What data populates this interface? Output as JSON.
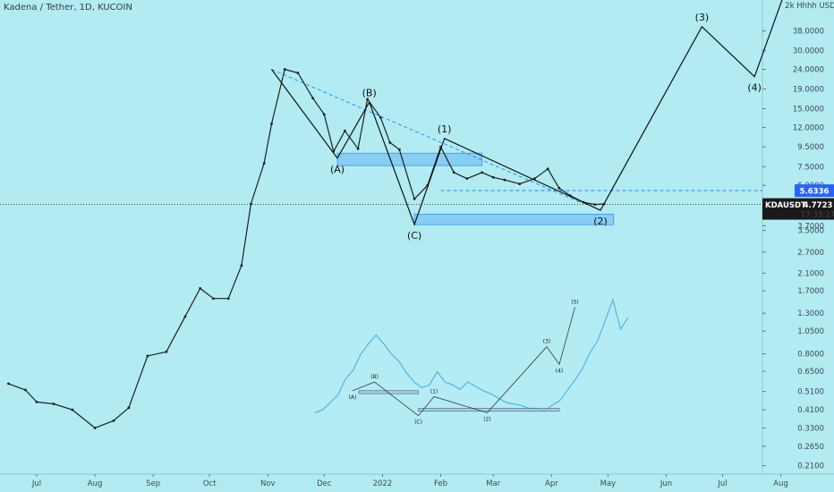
{
  "chart_data": {
    "type": "line",
    "title": "Kadena / Tether, 1D, KUCOIN",
    "y_scale": "log",
    "ylim": [
      0.19,
      55
    ],
    "y_ticks": [
      "38.0000",
      "30.0000",
      "24.0000",
      "19.0000",
      "15.0000",
      "12.0000",
      "9.5000",
      "7.5000",
      "6.0000",
      "4.7000",
      "3.7000",
      "3.5000",
      "2.7000",
      "2.1000",
      "1.7000",
      "1.3000",
      "1.0500",
      "0.8000",
      "0.6500",
      "0.5100",
      "0.4100",
      "0.3300",
      "0.2650",
      "0.2100"
    ],
    "y_tick_values": [
      38,
      30,
      24,
      19,
      15,
      12,
      9.5,
      7.5,
      6,
      4.7,
      3.7,
      3.5,
      2.7,
      2.1,
      1.7,
      1.3,
      1.05,
      0.8,
      0.65,
      0.51,
      0.41,
      0.33,
      0.265,
      0.21
    ],
    "y_tick_top": "2k Hhhh USDT",
    "x_ticks": [
      "Jul",
      "Aug",
      "Sep",
      "Oct",
      "Nov",
      "Dec",
      "2022",
      "Feb",
      "Mar",
      "Apr",
      "May",
      "Jun",
      "Jul",
      "Aug"
    ],
    "x_tick_days": [
      181,
      212,
      243,
      273,
      304,
      334,
      365,
      396,
      424,
      455,
      485,
      516,
      546,
      577
    ],
    "price_series": {
      "name": "KDAUSDT",
      "x": [
        166,
        175,
        181,
        190,
        200,
        212,
        222,
        230,
        240,
        250,
        260,
        268,
        275,
        283,
        290,
        295,
        302,
        306,
        313,
        320,
        328,
        334,
        339,
        345,
        352,
        357,
        364,
        369,
        374,
        382,
        389,
        396,
        403,
        410,
        418,
        424,
        430,
        438,
        446,
        453,
        459,
        465,
        472,
        478,
        483
      ],
      "y": [
        0.56,
        0.52,
        0.45,
        0.44,
        0.41,
        0.33,
        0.36,
        0.42,
        0.78,
        0.82,
        1.25,
        1.75,
        1.55,
        1.55,
        2.3,
        4.8,
        7.8,
        12.5,
        24,
        23,
        17,
        14,
        9,
        11.5,
        9.3,
        16.8,
        13.5,
        10,
        9.2,
        5.1,
        6,
        9.5,
        7,
        6.5,
        7,
        6.6,
        6.4,
        6.1,
        6.5,
        7.3,
        5.8,
        5.3,
        4.9,
        4.77,
        4.8
      ]
    },
    "current_price": {
      "label": "KDAUSDT",
      "value": "4.7723",
      "countdown": "17:35:27"
    },
    "alt_level": {
      "value": "5.6336"
    },
    "wave_projection": {
      "x": [
        306,
        341,
        358,
        382,
        398,
        481,
        535,
        563,
        579
      ],
      "y": [
        24,
        8.3,
        16.2,
        3.75,
        10.5,
        4.45,
        40,
        22,
        60
      ],
      "labels": [
        {
          "text": "(A)",
          "x": 341,
          "y": 8.3,
          "pos": "below"
        },
        {
          "text": "(B)",
          "x": 358,
          "y": 16.2,
          "pos": "above"
        },
        {
          "text": "(C)",
          "x": 382,
          "y": 3.75,
          "pos": "below"
        },
        {
          "text": "(1)",
          "x": 398,
          "y": 10.5,
          "pos": "above"
        },
        {
          "text": "(2)",
          "x": 481,
          "y": 4.45,
          "pos": "below"
        },
        {
          "text": "(3)",
          "x": 535,
          "y": 40,
          "pos": "above"
        },
        {
          "text": "(4)",
          "x": 563,
          "y": 22,
          "pos": "below"
        }
      ]
    },
    "trendline": {
      "x": [
        306,
        470
      ],
      "y": [
        24,
        4.9
      ]
    },
    "zones": [
      {
        "x": [
          341,
          418
        ],
        "y": [
          7.6,
          8.8
        ]
      },
      {
        "x": [
          382,
          488
        ],
        "y": [
          3.75,
          4.25
        ]
      }
    ],
    "inset_chart": {
      "y": [
        0.15,
        0.17,
        0.22,
        0.27,
        0.38,
        0.44,
        0.55,
        0.62,
        0.68,
        0.62,
        0.55,
        0.5,
        0.42,
        0.36,
        0.32,
        0.34,
        0.43,
        0.36,
        0.34,
        0.31,
        0.36,
        0.33,
        0.3,
        0.28,
        0.25,
        0.22,
        0.21,
        0.2,
        0.18,
        0.18,
        0.16,
        0.2,
        0.23,
        0.3,
        0.37,
        0.45,
        0.56,
        0.64,
        0.78,
        0.92,
        0.72,
        0.8
      ],
      "wave": [
        [
          0.12,
          0.3
        ],
        [
          0.19,
          0.36
        ],
        [
          0.33,
          0.13
        ],
        [
          0.38,
          0.26
        ],
        [
          0.55,
          0.15
        ],
        [
          0.74,
          0.6
        ],
        [
          0.78,
          0.48
        ],
        [
          0.83,
          0.87
        ]
      ],
      "wave_labels": [
        "(A)",
        "(B)",
        "(C)",
        "(1)",
        "(2)",
        "(3)",
        "(4)",
        "(5)"
      ],
      "zones": [
        [
          0.14,
          0.33,
          0.28,
          0.3
        ],
        [
          0.33,
          0.78,
          0.16,
          0.18
        ]
      ]
    }
  }
}
